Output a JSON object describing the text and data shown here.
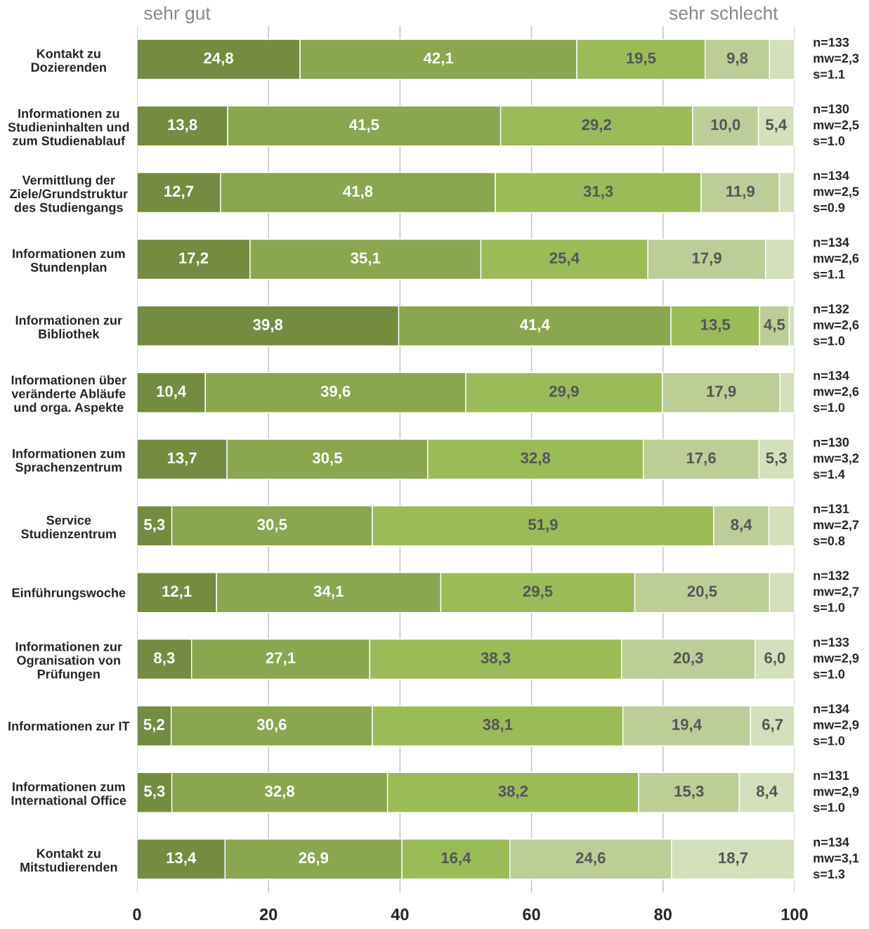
{
  "chart_data": {
    "type": "bar",
    "orientation": "horizontal",
    "stacked": true,
    "categories": [
      "Kontakt zu\nDozierenden",
      "Informationen zu\nStudieninhalten und\nzum Studienablauf",
      "Vermittlung der\nZiele/Grundstruktur\ndes Studiengangs",
      "Informationen zum\nStundenplan",
      "Informationen zur\nBibliothek",
      "Informationen über\nveränderte Abläufe\nund orga. Aspekte",
      "Informationen zum\nSprachenzentrum",
      "Service\nStudienzentrum",
      "Einführungswoche",
      "Informationen zur\nOgranisation von\nPrüfungen",
      "Informationen zur IT",
      "Informationen zum\nInternational Office",
      "Kontakt zu\nMitstudierenden"
    ],
    "series": [
      {
        "color": "#738c40",
        "values": [
          24.8,
          13.8,
          12.7,
          17.2,
          39.8,
          10.4,
          13.7,
          5.3,
          12.1,
          8.3,
          5.2,
          5.3,
          13.4
        ],
        "value_labels": [
          "24,8",
          "13,8",
          "12,7",
          "17,2",
          "39,8",
          "10,4",
          "13,7",
          "5,3",
          "12,1",
          "8,3",
          "5,2",
          "5,3",
          "13,4"
        ]
      },
      {
        "color": "#8aa64e",
        "values": [
          42.1,
          41.5,
          41.8,
          35.1,
          41.4,
          39.6,
          30.5,
          30.5,
          34.1,
          27.1,
          30.6,
          32.8,
          26.9
        ],
        "value_labels": [
          "42,1",
          "41,5",
          "41,8",
          "35,1",
          "41,4",
          "39,6",
          "30,5",
          "30,5",
          "34,1",
          "27,1",
          "30,6",
          "32,8",
          "26,9"
        ]
      },
      {
        "color": "#9bbb59",
        "values": [
          19.5,
          29.2,
          31.3,
          25.4,
          13.5,
          29.9,
          32.8,
          51.9,
          29.5,
          38.3,
          38.1,
          38.2,
          16.4
        ],
        "value_labels": [
          "19,5",
          "29,2",
          "31,3",
          "25,4",
          "13,5",
          "29,9",
          "32,8",
          "51,9",
          "29,5",
          "38,3",
          "38,1",
          "38,2",
          "16,4"
        ]
      },
      {
        "color": "#bccd98",
        "values": [
          9.8,
          10.0,
          11.9,
          17.9,
          4.5,
          17.9,
          17.6,
          8.4,
          20.5,
          20.3,
          19.4,
          15.3,
          24.6
        ],
        "value_labels": [
          "9,8",
          "10,0",
          "11,9",
          "17,9",
          "4,5",
          "17,9",
          "17,6",
          "8,4",
          "20,5",
          "20,3",
          "19,4",
          "15,3",
          "24,6"
        ]
      },
      {
        "color": "#d3dfbd",
        "values": [
          3.8,
          5.4,
          2.3,
          4.4,
          0.8,
          2.2,
          5.3,
          3.9,
          3.8,
          6.0,
          6.7,
          8.4,
          18.7
        ],
        "value_labels": [
          null,
          "5,4",
          null,
          null,
          null,
          null,
          "5,3",
          null,
          null,
          "6,0",
          "6,7",
          "8,4",
          "18,7"
        ]
      }
    ],
    "xlim": [
      0,
      100
    ],
    "xticks": [
      0,
      20,
      40,
      60,
      80,
      100
    ],
    "grid": "x",
    "annotations": [
      "sehr gut",
      "sehr schlecht",
      "n=133\nmw=2,3\ns=1.1",
      "n=130\nmw=2,5\ns=1.0",
      "n=134\nmw=2,5\ns=0.9",
      "n=134\nmw=2,6\ns=1.1",
      "n=132\nmw=2,6\ns=1.0",
      "n=134\nmw=2,6\ns=1.0",
      "n=130\nmw=3,2\ns=1.4",
      "n=131\nmw=2,7\ns=0.8",
      "n=132\nmw=2,7\ns=1.0",
      "n=133\nmw=2,9\ns=1.0",
      "n=134\nmw=2,9\ns=1.0",
      "n=131\nmw=2,9\ns=1.0",
      "n=134\nmw=3,1\ns=1.3"
    ]
  }
}
